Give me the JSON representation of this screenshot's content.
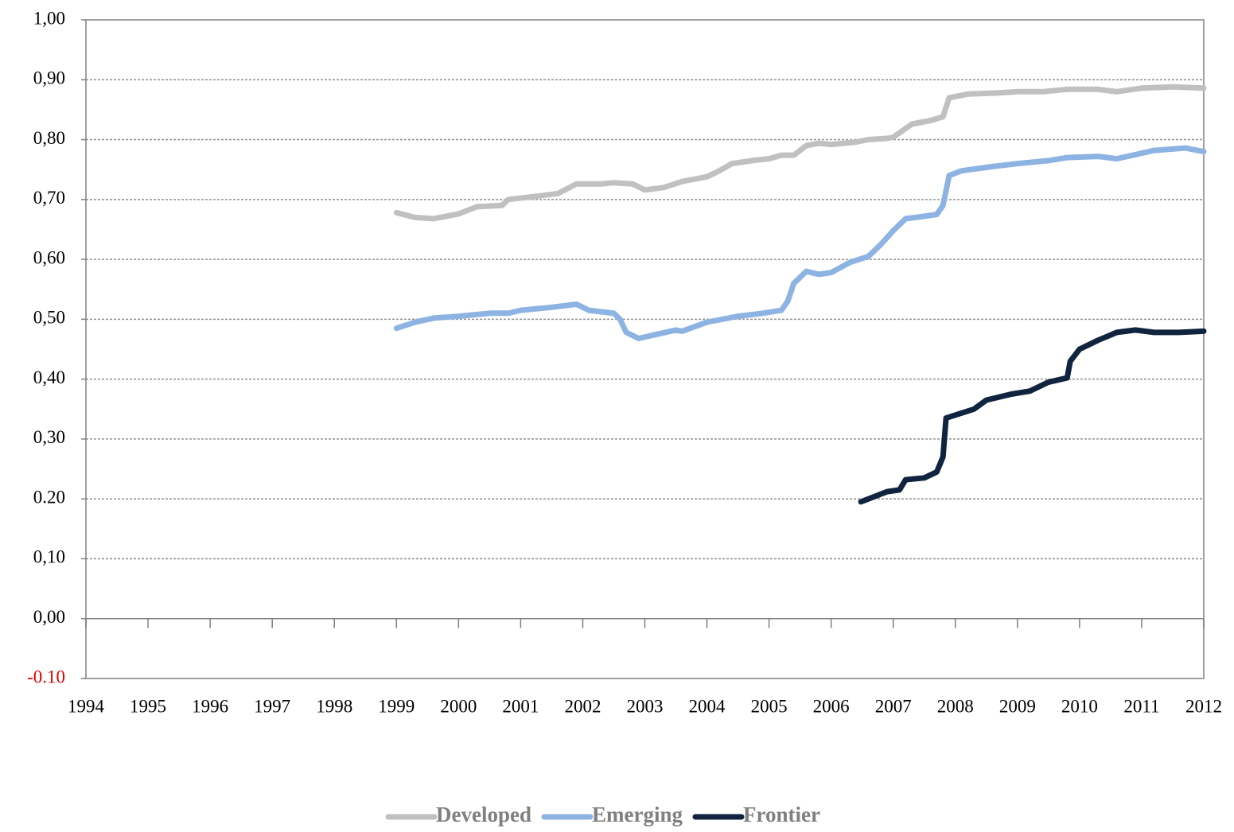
{
  "chart_data": {
    "type": "line",
    "xlim": [
      1994,
      2012
    ],
    "xticks": [
      1994,
      1995,
      1996,
      1997,
      1998,
      1999,
      2000,
      2001,
      2002,
      2003,
      2004,
      2005,
      2006,
      2007,
      2008,
      2009,
      2010,
      2011,
      2012
    ],
    "ylim": [
      -0.1,
      1.0
    ],
    "yticks": [
      {
        "value": -0.1,
        "label": "-0.10",
        "color": "#e00000"
      },
      {
        "value": 0,
        "label": "0,00"
      },
      {
        "value": 0.1,
        "label": "0,10"
      },
      {
        "value": 0.2,
        "label": "0.20"
      },
      {
        "value": 0.3,
        "label": "0,30"
      },
      {
        "value": 0.4,
        "label": "0,40"
      },
      {
        "value": 0.5,
        "label": "0,50"
      },
      {
        "value": 0.6,
        "label": "0,60"
      },
      {
        "value": 0.7,
        "label": "0,70"
      },
      {
        "value": 0.8,
        "label": "0,80"
      },
      {
        "value": 0.9,
        "label": "0,90"
      },
      {
        "value": 1.0,
        "label": "1,00"
      }
    ],
    "grid": true,
    "legend": "bottom",
    "series": [
      {
        "name": "Developed",
        "color": "#c0c0c0",
        "x": [
          1999.0,
          1999.3,
          1999.6,
          2000.0,
          2000.3,
          2000.7,
          2000.8,
          2001.3,
          2001.6,
          2001.9,
          2002.3,
          2002.5,
          2002.8,
          2003.0,
          2003.3,
          2003.6,
          2004.0,
          2004.2,
          2004.4,
          2004.8,
          2005.0,
          2005.2,
          2005.4,
          2005.6,
          2005.8,
          2006.0,
          2006.4,
          2006.6,
          2006.9,
          2007.0,
          2007.3,
          2007.6,
          2007.8,
          2007.9,
          2008.2,
          2008.7,
          2009.0,
          2009.4,
          2009.8,
          2010.3,
          2010.6,
          2011.0,
          2011.5,
          2012.0
        ],
        "values": [
          0.678,
          0.67,
          0.668,
          0.676,
          0.688,
          0.69,
          0.7,
          0.706,
          0.71,
          0.726,
          0.726,
          0.728,
          0.726,
          0.716,
          0.72,
          0.73,
          0.738,
          0.748,
          0.76,
          0.766,
          0.768,
          0.774,
          0.774,
          0.79,
          0.794,
          0.792,
          0.796,
          0.8,
          0.802,
          0.804,
          0.826,
          0.832,
          0.838,
          0.87,
          0.876,
          0.878,
          0.88,
          0.88,
          0.884,
          0.884,
          0.88,
          0.886,
          0.888,
          0.886
        ]
      },
      {
        "name": "Emerging",
        "color": "#8db3e2",
        "x": [
          1999.0,
          1999.3,
          1999.6,
          2000.0,
          2000.5,
          2000.8,
          2001.0,
          2001.5,
          2001.9,
          2002.1,
          2002.5,
          2002.6,
          2002.7,
          2002.9,
          2003.2,
          2003.5,
          2003.6,
          2004.0,
          2004.5,
          2004.9,
          2005.2,
          2005.3,
          2005.4,
          2005.6,
          2005.8,
          2006.0,
          2006.3,
          2006.6,
          2006.8,
          2007.0,
          2007.2,
          2007.5,
          2007.7,
          2007.8,
          2007.9,
          2008.1,
          2008.6,
          2009.0,
          2009.5,
          2009.8,
          2010.3,
          2010.6,
          2010.9,
          2011.2,
          2011.7,
          2012.0
        ],
        "values": [
          0.485,
          0.495,
          0.502,
          0.505,
          0.51,
          0.51,
          0.515,
          0.52,
          0.525,
          0.515,
          0.51,
          0.5,
          0.478,
          0.468,
          0.475,
          0.482,
          0.48,
          0.495,
          0.505,
          0.51,
          0.515,
          0.53,
          0.56,
          0.58,
          0.575,
          0.578,
          0.595,
          0.605,
          0.625,
          0.648,
          0.668,
          0.672,
          0.675,
          0.69,
          0.74,
          0.748,
          0.755,
          0.76,
          0.765,
          0.77,
          0.772,
          0.768,
          0.775,
          0.782,
          0.786,
          0.78
        ]
      },
      {
        "name": "Frontier",
        "color": "#10243f",
        "x": [
          2006.48,
          2006.6,
          2006.9,
          2007.1,
          2007.2,
          2007.5,
          2007.7,
          2007.8,
          2007.85,
          2008.0,
          2008.3,
          2008.5,
          2008.9,
          2009.2,
          2009.5,
          2009.8,
          2009.85,
          2010.0,
          2010.3,
          2010.6,
          2010.9,
          2011.2,
          2011.6,
          2012.0
        ],
        "values": [
          0.195,
          0.2,
          0.212,
          0.215,
          0.232,
          0.235,
          0.245,
          0.27,
          0.335,
          0.34,
          0.35,
          0.365,
          0.375,
          0.38,
          0.395,
          0.402,
          0.43,
          0.45,
          0.465,
          0.478,
          0.482,
          0.478,
          0.478,
          0.48
        ]
      }
    ]
  }
}
